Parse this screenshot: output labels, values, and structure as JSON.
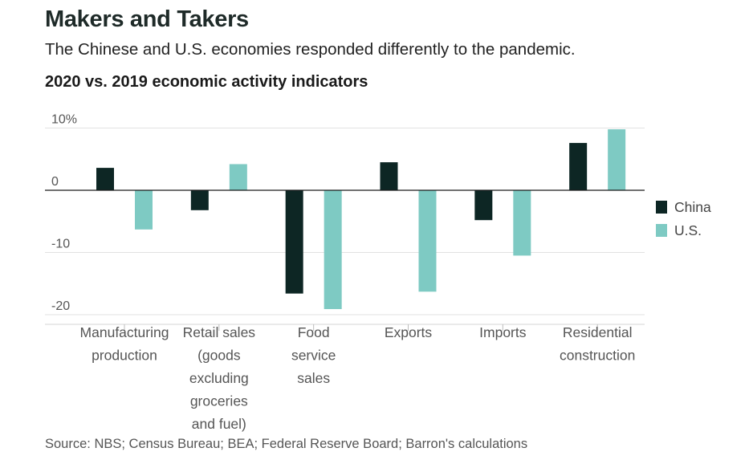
{
  "title": "Makers and Takers",
  "subtitle": "The Chinese and U.S. economies responded differently to the pandemic.",
  "source": "Source: NBS; Census Bureau; BEA; Federal Reserve Board; Barron's calculations",
  "chart_data": {
    "type": "bar",
    "title": "2020 vs. 2019 economic activity indicators",
    "categories": [
      [
        "Manufacturing",
        "production"
      ],
      [
        "Retail sales",
        "(goods",
        "excluding",
        "groceries",
        "and fuel)"
      ],
      [
        "Food",
        "service",
        "sales"
      ],
      [
        "Exports"
      ],
      [
        "Imports"
      ],
      [
        "Residential",
        "construction"
      ]
    ],
    "series": [
      {
        "name": "China",
        "color": "#0d2624",
        "values": [
          3.6,
          -3.2,
          -16.6,
          4.5,
          -4.8,
          7.6
        ]
      },
      {
        "name": "U.S.",
        "color": "#7ecac3",
        "values": [
          -6.3,
          4.2,
          -19.1,
          -16.3,
          -10.5,
          9.8
        ]
      }
    ],
    "y_ticks": [
      {
        "value": 10,
        "label": "10%"
      },
      {
        "value": 0,
        "label": "0"
      },
      {
        "value": -10,
        "label": "-10"
      },
      {
        "value": -20,
        "label": "-20"
      }
    ],
    "ylim": [
      -20,
      10
    ],
    "grid": true,
    "legend_position": "right"
  }
}
